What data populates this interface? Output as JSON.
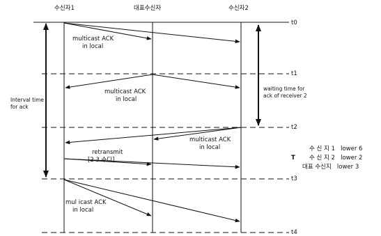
{
  "header": {
    "node_1": "수신자1",
    "node_2": "대표수신자",
    "node_3": "수신자2"
  },
  "time_labels": [
    "t0",
    "t1",
    "t2",
    "t3",
    "t4"
  ],
  "annotations": {
    "ack_local_1_l1": "multicast ACK",
    "ack_local_1_l2": "in local",
    "ack_local_2_l1": "multicast ACK",
    "ack_local_2_l2": "in local",
    "ack_local_3_l1": "multicast ACK",
    "ack_local_3_l2": "in local",
    "ack_local_4_l1": "mul icast ACK",
    "ack_local_4_l2": "in local",
    "retransmit_l1": "retransmit",
    "retransmit_l2": "[2 3 수디]",
    "interval_l1": "Interval time",
    "interval_l2": "for ack",
    "waiting_l1": "waiting time for",
    "waiting_l2": "ack of receiver 2"
  },
  "table": {
    "marker": "T",
    "rows": [
      "수 신 지 1   lower 6",
      "수 신 지 2   lower 2",
      "대표 수신지   lower 3"
    ]
  }
}
